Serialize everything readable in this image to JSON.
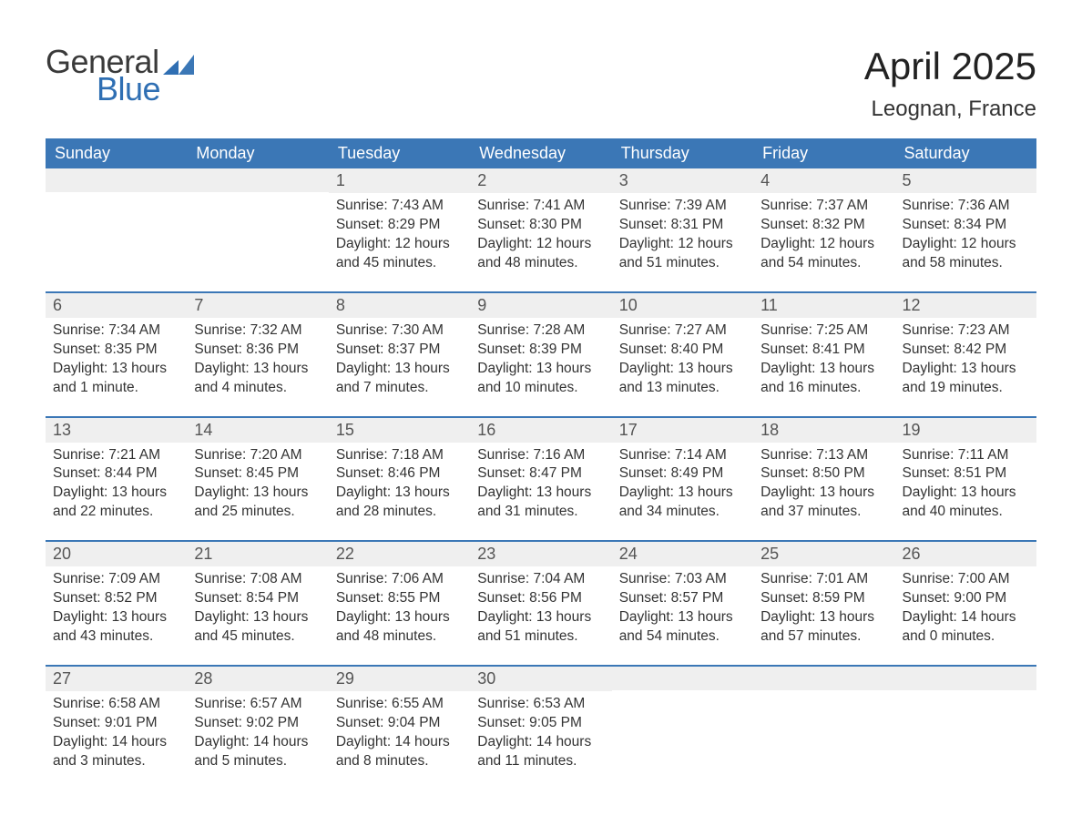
{
  "logo": {
    "word1": "General",
    "word2": "Blue",
    "word1_color": "#3a3a3a",
    "word2_color": "#2f6fb3",
    "mark_color": "#2f6fb3"
  },
  "header": {
    "title": "April 2025",
    "location": "Leognan, France",
    "title_fontsize": 42,
    "location_fontsize": 24
  },
  "colors": {
    "dow_bg": "#3b77b6",
    "dow_text": "#ffffff",
    "daynum_bg": "#efefef",
    "week_border": "#3b77b6",
    "body_text": "#333333",
    "background": "#ffffff"
  },
  "days_of_week": [
    "Sunday",
    "Monday",
    "Tuesday",
    "Wednesday",
    "Thursday",
    "Friday",
    "Saturday"
  ],
  "labels": {
    "sunrise": "Sunrise:",
    "sunset": "Sunset:",
    "daylight": "Daylight:"
  },
  "weeks": [
    [
      {
        "num": "",
        "sunrise": "",
        "sunset": "",
        "daylight": ""
      },
      {
        "num": "",
        "sunrise": "",
        "sunset": "",
        "daylight": ""
      },
      {
        "num": "1",
        "sunrise": "7:43 AM",
        "sunset": "8:29 PM",
        "daylight": "12 hours and 45 minutes."
      },
      {
        "num": "2",
        "sunrise": "7:41 AM",
        "sunset": "8:30 PM",
        "daylight": "12 hours and 48 minutes."
      },
      {
        "num": "3",
        "sunrise": "7:39 AM",
        "sunset": "8:31 PM",
        "daylight": "12 hours and 51 minutes."
      },
      {
        "num": "4",
        "sunrise": "7:37 AM",
        "sunset": "8:32 PM",
        "daylight": "12 hours and 54 minutes."
      },
      {
        "num": "5",
        "sunrise": "7:36 AM",
        "sunset": "8:34 PM",
        "daylight": "12 hours and 58 minutes."
      }
    ],
    [
      {
        "num": "6",
        "sunrise": "7:34 AM",
        "sunset": "8:35 PM",
        "daylight": "13 hours and 1 minute."
      },
      {
        "num": "7",
        "sunrise": "7:32 AM",
        "sunset": "8:36 PM",
        "daylight": "13 hours and 4 minutes."
      },
      {
        "num": "8",
        "sunrise": "7:30 AM",
        "sunset": "8:37 PM",
        "daylight": "13 hours and 7 minutes."
      },
      {
        "num": "9",
        "sunrise": "7:28 AM",
        "sunset": "8:39 PM",
        "daylight": "13 hours and 10 minutes."
      },
      {
        "num": "10",
        "sunrise": "7:27 AM",
        "sunset": "8:40 PM",
        "daylight": "13 hours and 13 minutes."
      },
      {
        "num": "11",
        "sunrise": "7:25 AM",
        "sunset": "8:41 PM",
        "daylight": "13 hours and 16 minutes."
      },
      {
        "num": "12",
        "sunrise": "7:23 AM",
        "sunset": "8:42 PM",
        "daylight": "13 hours and 19 minutes."
      }
    ],
    [
      {
        "num": "13",
        "sunrise": "7:21 AM",
        "sunset": "8:44 PM",
        "daylight": "13 hours and 22 minutes."
      },
      {
        "num": "14",
        "sunrise": "7:20 AM",
        "sunset": "8:45 PM",
        "daylight": "13 hours and 25 minutes."
      },
      {
        "num": "15",
        "sunrise": "7:18 AM",
        "sunset": "8:46 PM",
        "daylight": "13 hours and 28 minutes."
      },
      {
        "num": "16",
        "sunrise": "7:16 AM",
        "sunset": "8:47 PM",
        "daylight": "13 hours and 31 minutes."
      },
      {
        "num": "17",
        "sunrise": "7:14 AM",
        "sunset": "8:49 PM",
        "daylight": "13 hours and 34 minutes."
      },
      {
        "num": "18",
        "sunrise": "7:13 AM",
        "sunset": "8:50 PM",
        "daylight": "13 hours and 37 minutes."
      },
      {
        "num": "19",
        "sunrise": "7:11 AM",
        "sunset": "8:51 PM",
        "daylight": "13 hours and 40 minutes."
      }
    ],
    [
      {
        "num": "20",
        "sunrise": "7:09 AM",
        "sunset": "8:52 PM",
        "daylight": "13 hours and 43 minutes."
      },
      {
        "num": "21",
        "sunrise": "7:08 AM",
        "sunset": "8:54 PM",
        "daylight": "13 hours and 45 minutes."
      },
      {
        "num": "22",
        "sunrise": "7:06 AM",
        "sunset": "8:55 PM",
        "daylight": "13 hours and 48 minutes."
      },
      {
        "num": "23",
        "sunrise": "7:04 AM",
        "sunset": "8:56 PM",
        "daylight": "13 hours and 51 minutes."
      },
      {
        "num": "24",
        "sunrise": "7:03 AM",
        "sunset": "8:57 PM",
        "daylight": "13 hours and 54 minutes."
      },
      {
        "num": "25",
        "sunrise": "7:01 AM",
        "sunset": "8:59 PM",
        "daylight": "13 hours and 57 minutes."
      },
      {
        "num": "26",
        "sunrise": "7:00 AM",
        "sunset": "9:00 PM",
        "daylight": "14 hours and 0 minutes."
      }
    ],
    [
      {
        "num": "27",
        "sunrise": "6:58 AM",
        "sunset": "9:01 PM",
        "daylight": "14 hours and 3 minutes."
      },
      {
        "num": "28",
        "sunrise": "6:57 AM",
        "sunset": "9:02 PM",
        "daylight": "14 hours and 5 minutes."
      },
      {
        "num": "29",
        "sunrise": "6:55 AM",
        "sunset": "9:04 PM",
        "daylight": "14 hours and 8 minutes."
      },
      {
        "num": "30",
        "sunrise": "6:53 AM",
        "sunset": "9:05 PM",
        "daylight": "14 hours and 11 minutes."
      },
      {
        "num": "",
        "sunrise": "",
        "sunset": "",
        "daylight": ""
      },
      {
        "num": "",
        "sunrise": "",
        "sunset": "",
        "daylight": ""
      },
      {
        "num": "",
        "sunrise": "",
        "sunset": "",
        "daylight": ""
      }
    ]
  ]
}
